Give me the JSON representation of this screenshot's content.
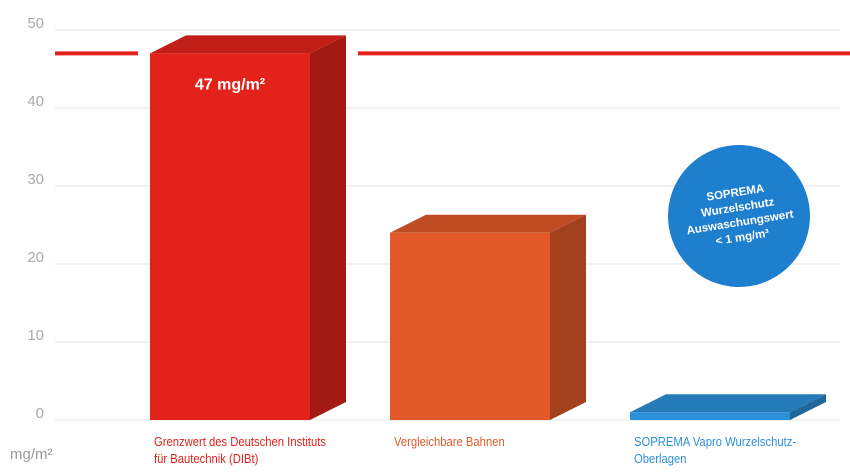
{
  "chart_data": {
    "type": "bar3d",
    "y_axis_label": "mg/m²",
    "categories": [
      "Grenzwert des Deutschen Instituts für Bautechnik (DIBt)",
      "Vergleichbare Bahnen",
      "SOPREMA Vapro Wurzelschutz-Oberlagen"
    ],
    "values": [
      47,
      24,
      1
    ],
    "value_labels": [
      "47 mg/m²",
      null,
      null
    ],
    "colors": [
      "#e3231b",
      "#e2592a",
      "#2c90d8"
    ],
    "label_colors": [
      "#e3231b",
      "#e2592a",
      "#2c90d8"
    ],
    "reference_line": {
      "value": 47,
      "color": "#e3231b"
    },
    "annotation_lines": [
      "SOPREMA",
      "Wurzelschutz",
      "Auswaschungswert",
      "< 1 mg/m³"
    ],
    "annotation_color": "#1f7fcf",
    "ylim": [
      0,
      50
    ],
    "yticks": [
      0,
      10,
      20,
      30,
      40,
      50
    ],
    "grid": true
  }
}
